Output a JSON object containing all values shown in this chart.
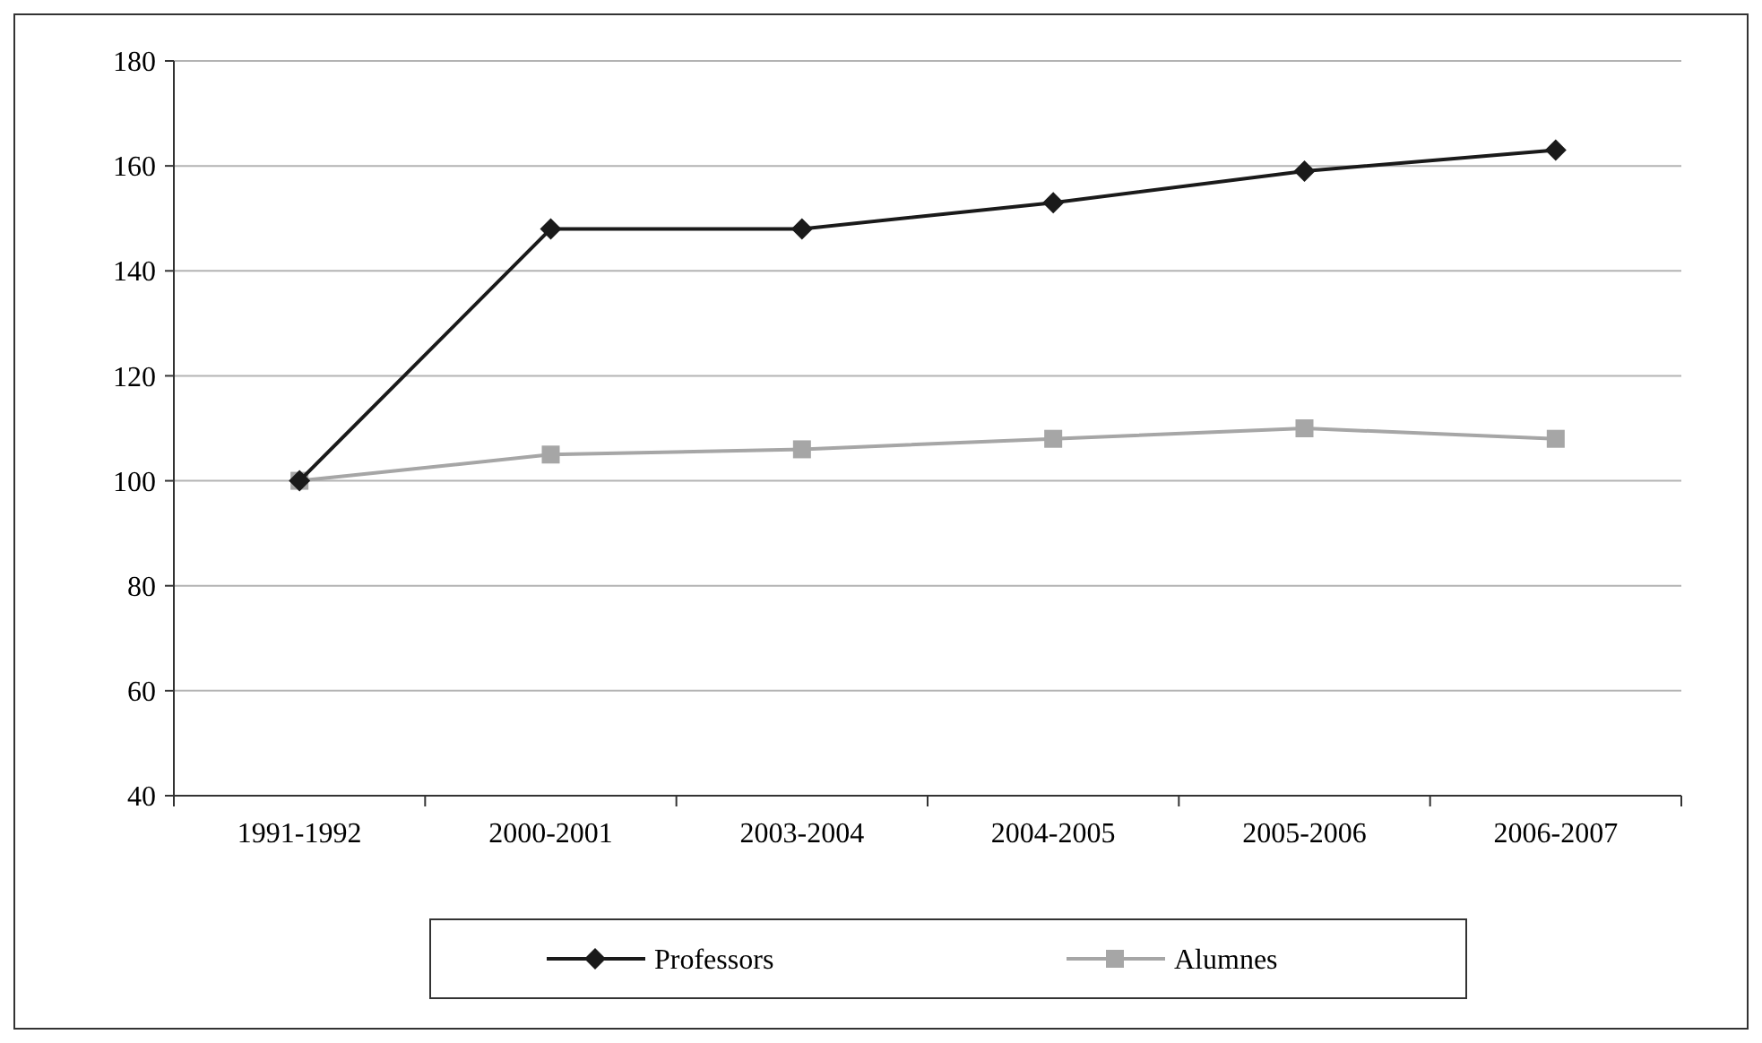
{
  "chart_data": {
    "type": "line",
    "categories": [
      "1991-1992",
      "2000-2001",
      "2003-2004",
      "2004-2005",
      "2005-2006",
      "2006-2007"
    ],
    "series": [
      {
        "name": "Professors",
        "color": "#1a1a1a",
        "marker": "diamond",
        "values": [
          100,
          148,
          148,
          153,
          159,
          163
        ]
      },
      {
        "name": "Alumnes",
        "color": "#a6a6a6",
        "marker": "square",
        "values": [
          100,
          105,
          106,
          108,
          110,
          108
        ]
      }
    ],
    "ylim": [
      40,
      180
    ],
    "yticks": [
      40,
      60,
      80,
      100,
      120,
      140,
      160,
      180
    ],
    "grid": "y",
    "legend": "bottom"
  }
}
